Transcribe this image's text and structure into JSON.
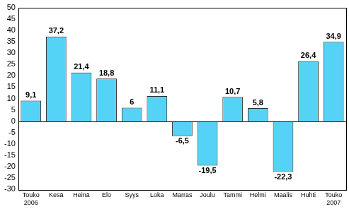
{
  "chart_data": {
    "type": "bar",
    "categories": [
      "Touko 2006",
      "Kesä",
      "Heinä",
      "Elo",
      "Syys",
      "Loka",
      "Marras",
      "Joulu",
      "Tammi",
      "Helmi",
      "Maalis",
      "Huhti",
      "Touko 2007"
    ],
    "values": [
      9.1,
      37.2,
      21.4,
      18.8,
      6,
      11.1,
      -6.5,
      -19.5,
      10.7,
      5.8,
      -22.3,
      26.4,
      34.9
    ],
    "value_labels": [
      "9,1",
      "37,2",
      "21,4",
      "18,8",
      "6",
      "11,1",
      "-6,5",
      "-19,5",
      "10,7",
      "5,8",
      "-22,3",
      "26,4",
      "34,9"
    ],
    "data_labels": true,
    "color": "#55d3f7",
    "ylim": [
      -30,
      50
    ],
    "yticks": [
      -30,
      -25,
      -20,
      -15,
      -10,
      -5,
      0,
      5,
      10,
      15,
      20,
      25,
      30,
      35,
      40,
      45,
      50
    ],
    "grid": false
  }
}
